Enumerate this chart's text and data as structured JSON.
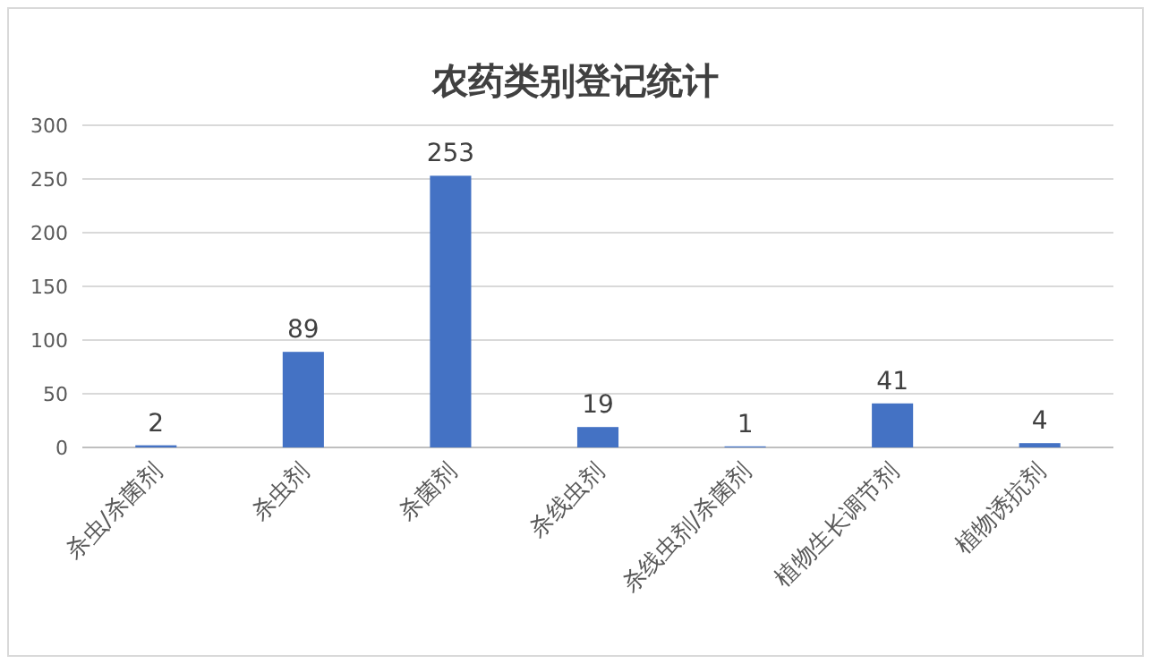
{
  "chart_data": {
    "type": "bar",
    "title": "农药类别登记统计",
    "categories": [
      "杀虫/杀菌剂",
      "杀虫剂",
      "杀菌剂",
      "杀线虫剂",
      "杀线虫剂/杀菌剂",
      "植物生长调节剂",
      "植物诱抗剂"
    ],
    "values": [
      2,
      89,
      253,
      19,
      1,
      41,
      4
    ],
    "color": "#4472c4",
    "data_labels": true,
    "ylim": [
      0,
      300
    ],
    "yticks": [
      0,
      50,
      100,
      150,
      200,
      250,
      300
    ],
    "grid": "y"
  }
}
